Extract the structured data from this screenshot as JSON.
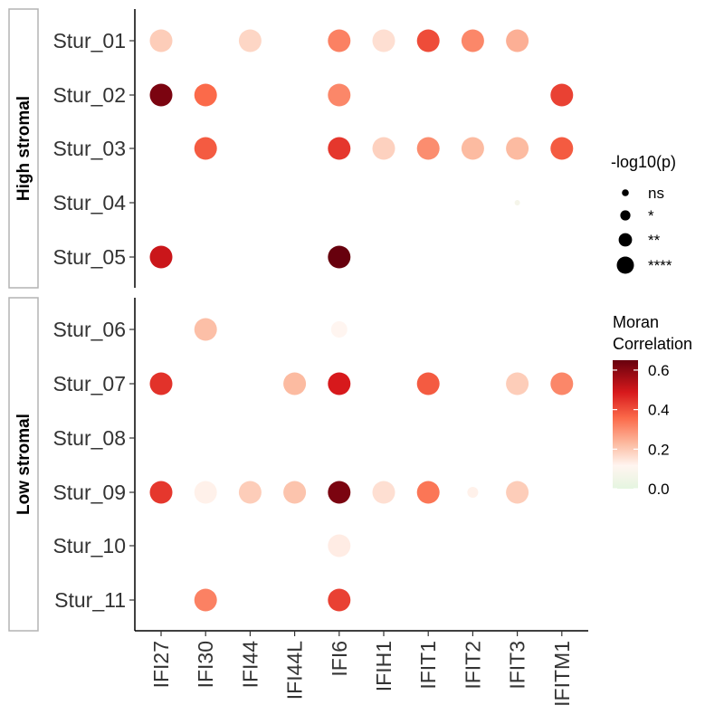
{
  "chart_data": {
    "type": "scatter",
    "x_categories": [
      "IFI27",
      "IFI30",
      "IFI44",
      "IFI44L",
      "IFI6",
      "IFIH1",
      "IFIT1",
      "IFIT2",
      "IFIT3",
      "IFITM1"
    ],
    "panels": [
      {
        "label": "High stromal",
        "rows": [
          "Stur_01",
          "Stur_02",
          "Stur_03",
          "Stur_04",
          "Stur_05"
        ],
        "points": [
          {
            "row": "Stur_01",
            "gene": "IFI27",
            "corr": 0.14,
            "sig": "****"
          },
          {
            "row": "Stur_01",
            "gene": "IFI44",
            "corr": 0.12,
            "sig": "****"
          },
          {
            "row": "Stur_01",
            "gene": "IFI6",
            "corr": 0.28,
            "sig": "****"
          },
          {
            "row": "Stur_01",
            "gene": "IFIH1",
            "corr": 0.1,
            "sig": "****"
          },
          {
            "row": "Stur_01",
            "gene": "IFIT1",
            "corr": 0.38,
            "sig": "****"
          },
          {
            "row": "Stur_01",
            "gene": "IFIT2",
            "corr": 0.27,
            "sig": "****"
          },
          {
            "row": "Stur_01",
            "gene": "IFIT3",
            "corr": 0.2,
            "sig": "****"
          },
          {
            "row": "Stur_02",
            "gene": "IFI27",
            "corr": 0.62,
            "sig": "****"
          },
          {
            "row": "Stur_02",
            "gene": "IFI30",
            "corr": 0.32,
            "sig": "****"
          },
          {
            "row": "Stur_02",
            "gene": "IFI6",
            "corr": 0.27,
            "sig": "****"
          },
          {
            "row": "Stur_02",
            "gene": "IFITM1",
            "corr": 0.4,
            "sig": "****"
          },
          {
            "row": "Stur_03",
            "gene": "IFI30",
            "corr": 0.35,
            "sig": "****"
          },
          {
            "row": "Stur_03",
            "gene": "IFI6",
            "corr": 0.42,
            "sig": "****"
          },
          {
            "row": "Stur_03",
            "gene": "IFIH1",
            "corr": 0.13,
            "sig": "****"
          },
          {
            "row": "Stur_03",
            "gene": "IFIT1",
            "corr": 0.26,
            "sig": "****"
          },
          {
            "row": "Stur_03",
            "gene": "IFIT2",
            "corr": 0.18,
            "sig": "****"
          },
          {
            "row": "Stur_03",
            "gene": "IFIT3",
            "corr": 0.18,
            "sig": "****"
          },
          {
            "row": "Stur_03",
            "gene": "IFITM1",
            "corr": 0.35,
            "sig": "****"
          },
          {
            "row": "Stur_04",
            "gene": "IFIT3",
            "corr": 0.03,
            "sig": "ns"
          },
          {
            "row": "Stur_05",
            "gene": "IFI27",
            "corr": 0.5,
            "sig": "****"
          },
          {
            "row": "Stur_05",
            "gene": "IFI6",
            "corr": 0.65,
            "sig": "****"
          }
        ]
      },
      {
        "label": "Low stromal",
        "rows": [
          "Stur_06",
          "Stur_07",
          "Stur_08",
          "Stur_09",
          "Stur_10",
          "Stur_11"
        ],
        "points": [
          {
            "row": "Stur_06",
            "gene": "IFI30",
            "corr": 0.17,
            "sig": "****"
          },
          {
            "row": "Stur_06",
            "gene": "IFI6",
            "corr": 0.05,
            "sig": "**"
          },
          {
            "row": "Stur_07",
            "gene": "IFI27",
            "corr": 0.43,
            "sig": "****"
          },
          {
            "row": "Stur_07",
            "gene": "IFI44L",
            "corr": 0.18,
            "sig": "****"
          },
          {
            "row": "Stur_07",
            "gene": "IFI6",
            "corr": 0.48,
            "sig": "****"
          },
          {
            "row": "Stur_07",
            "gene": "IFIT1",
            "corr": 0.35,
            "sig": "****"
          },
          {
            "row": "Stur_07",
            "gene": "IFIT3",
            "corr": 0.14,
            "sig": "****"
          },
          {
            "row": "Stur_07",
            "gene": "IFITM1",
            "corr": 0.27,
            "sig": "****"
          },
          {
            "row": "Stur_09",
            "gene": "IFI27",
            "corr": 0.42,
            "sig": "****"
          },
          {
            "row": "Stur_09",
            "gene": "IFI30",
            "corr": 0.06,
            "sig": "****"
          },
          {
            "row": "Stur_09",
            "gene": "IFI44",
            "corr": 0.14,
            "sig": "****"
          },
          {
            "row": "Stur_09",
            "gene": "IFI44L",
            "corr": 0.16,
            "sig": "****"
          },
          {
            "row": "Stur_09",
            "gene": "IFI6",
            "corr": 0.62,
            "sig": "****"
          },
          {
            "row": "Stur_09",
            "gene": "IFIH1",
            "corr": 0.1,
            "sig": "****"
          },
          {
            "row": "Stur_09",
            "gene": "IFIT1",
            "corr": 0.3,
            "sig": "****"
          },
          {
            "row": "Stur_09",
            "gene": "IFIT2",
            "corr": 0.06,
            "sig": "*"
          },
          {
            "row": "Stur_09",
            "gene": "IFIT3",
            "corr": 0.14,
            "sig": "****"
          },
          {
            "row": "Stur_10",
            "gene": "IFI6",
            "corr": 0.07,
            "sig": "****"
          },
          {
            "row": "Stur_11",
            "gene": "IFI30",
            "corr": 0.28,
            "sig": "****"
          },
          {
            "row": "Stur_11",
            "gene": "IFI6",
            "corr": 0.4,
            "sig": "****"
          }
        ]
      }
    ],
    "size_legend": {
      "title": "-log10(p)",
      "levels": [
        "ns",
        "*",
        "**",
        "****"
      ]
    },
    "color_legend": {
      "title_lines": [
        "Moran",
        "Correlation"
      ],
      "range": [
        0.0,
        0.65
      ],
      "ticks": [
        0.0,
        0.2,
        0.4,
        0.6
      ],
      "tick_labels": [
        "0.0",
        "0.2",
        "0.4",
        "0.6"
      ],
      "colors": {
        "low": "#e5f5e0",
        "mid_low": "#fee0d2",
        "mid": "#fc9272",
        "mid_high": "#ef3b2c",
        "high": "#67000d"
      }
    },
    "grid": false,
    "legend_position": "right"
  }
}
